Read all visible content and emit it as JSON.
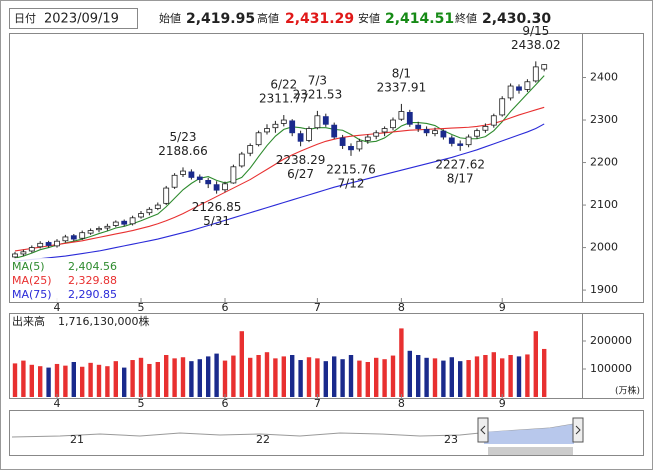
{
  "header": {
    "date_label": "日付",
    "date": "2023/09/19",
    "fields": [
      {
        "label": "始値",
        "value": "2,419.95"
      },
      {
        "label": "高値",
        "value": "2,431.29"
      },
      {
        "label": "安値",
        "value": "2,414.51"
      },
      {
        "label": "終値",
        "value": "2,430.30"
      }
    ]
  },
  "chart_data": [
    {
      "type": "candlestick",
      "up_color": "#ffffff",
      "down_color": "#1a2a8c",
      "categories": [
        null,
        null,
        null,
        null,
        null,
        "4",
        null,
        null,
        null,
        null,
        null,
        null,
        null,
        null,
        null,
        "5",
        null,
        null,
        null,
        null,
        null,
        null,
        null,
        null,
        null,
        "6",
        null,
        null,
        null,
        null,
        null,
        null,
        null,
        null,
        null,
        null,
        "7",
        null,
        null,
        null,
        null,
        null,
        null,
        null,
        null,
        null,
        "8",
        null,
        null,
        null,
        null,
        null,
        null,
        null,
        null,
        null,
        null,
        null,
        "9",
        null,
        null,
        null,
        null,
        null
      ],
      "candles": [
        [
          1978,
          1990,
          1972,
          1985
        ],
        [
          1985,
          1995,
          1980,
          1990
        ],
        [
          1992,
          2005,
          1988,
          2000
        ],
        [
          2002,
          2015,
          1998,
          2010
        ],
        [
          2012,
          2016,
          2000,
          2005
        ],
        [
          2004,
          2020,
          2000,
          2015
        ],
        [
          2016,
          2030,
          2012,
          2025
        ],
        [
          2028,
          2032,
          2015,
          2020
        ],
        [
          2022,
          2040,
          2018,
          2035
        ],
        [
          2034,
          2045,
          2030,
          2040
        ],
        [
          2042,
          2050,
          2036,
          2045
        ],
        [
          2046,
          2056,
          2040,
          2050
        ],
        [
          2052,
          2064,
          2048,
          2060
        ],
        [
          2062,
          2066,
          2050,
          2055
        ],
        [
          2056,
          2075,
          2052,
          2070
        ],
        [
          2072,
          2086,
          2068,
          2080
        ],
        [
          2082,
          2095,
          2076,
          2090
        ],
        [
          2092,
          2106,
          2088,
          2100
        ],
        [
          2104,
          2145,
          2100,
          2140
        ],
        [
          2142,
          2175,
          2138,
          2170
        ],
        [
          2172,
          2188.66,
          2166,
          2180
        ],
        [
          2178,
          2184,
          2160,
          2165
        ],
        [
          2166,
          2172,
          2152,
          2160
        ],
        [
          2158,
          2164,
          2140,
          2150
        ],
        [
          2148,
          2156,
          2126.85,
          2135
        ],
        [
          2136,
          2155,
          2130,
          2150
        ],
        [
          2152,
          2195,
          2150,
          2190
        ],
        [
          2192,
          2225,
          2188,
          2220
        ],
        [
          2222,
          2245,
          2215,
          2240
        ],
        [
          2242,
          2275,
          2238,
          2270
        ],
        [
          2272,
          2290,
          2266,
          2280
        ],
        [
          2282,
          2298,
          2270,
          2290
        ],
        [
          2292,
          2311.77,
          2285,
          2300
        ],
        [
          2298,
          2302,
          2262,
          2270
        ],
        [
          2268,
          2275,
          2238.29,
          2250
        ],
        [
          2252,
          2285,
          2248,
          2280
        ],
        [
          2282,
          2321.53,
          2278,
          2310
        ],
        [
          2308,
          2315,
          2284,
          2290
        ],
        [
          2288,
          2294,
          2255,
          2260
        ],
        [
          2258,
          2265,
          2232,
          2240
        ],
        [
          2238,
          2245,
          2215.76,
          2230
        ],
        [
          2232,
          2256,
          2226,
          2250
        ],
        [
          2252,
          2266,
          2244,
          2260
        ],
        [
          2262,
          2276,
          2255,
          2270
        ],
        [
          2272,
          2285,
          2262,
          2280
        ],
        [
          2282,
          2306,
          2276,
          2300
        ],
        [
          2302,
          2337.91,
          2298,
          2320
        ],
        [
          2318,
          2324,
          2284,
          2290
        ],
        [
          2288,
          2296,
          2272,
          2280
        ],
        [
          2278,
          2285,
          2262,
          2270
        ],
        [
          2268,
          2282,
          2262,
          2275
        ],
        [
          2274,
          2278,
          2254,
          2260
        ],
        [
          2258,
          2264,
          2238,
          2245
        ],
        [
          2244,
          2252,
          2227.62,
          2240
        ],
        [
          2242,
          2266,
          2236,
          2260
        ],
        [
          2262,
          2280,
          2256,
          2275
        ],
        [
          2276,
          2292,
          2270,
          2285
        ],
        [
          2288,
          2315,
          2282,
          2310
        ],
        [
          2312,
          2356,
          2308,
          2350
        ],
        [
          2352,
          2386,
          2346,
          2380
        ],
        [
          2378,
          2384,
          2362,
          2370
        ],
        [
          2372,
          2396,
          2366,
          2390
        ],
        [
          2392,
          2438.02,
          2388,
          2425
        ],
        [
          2419.95,
          2431.29,
          2414.51,
          2430.3
        ]
      ],
      "series": [
        {
          "name": "MA(5)",
          "color": "#2e8b2e",
          "legend_value": "2,404.56",
          "values": [
            1975,
            1980,
            1987,
            1995,
            2000,
            2006,
            2011,
            2015,
            2020,
            2026,
            2033,
            2039,
            2046,
            2050,
            2056,
            2063,
            2071,
            2079,
            2096,
            2116,
            2136,
            2151,
            2163,
            2167,
            2158,
            2152,
            2157,
            2165,
            2187,
            2214,
            2240,
            2262,
            2278,
            2284,
            2282,
            2278,
            2282,
            2282,
            2278,
            2276,
            2266,
            2254,
            2248,
            2250,
            2258,
            2272,
            2286,
            2294,
            2294,
            2292,
            2287,
            2275,
            2266,
            2258,
            2256,
            2256,
            2261,
            2275,
            2296,
            2320,
            2341,
            2362,
            2383,
            2404.56
          ]
        },
        {
          "name": "MA(25)",
          "color": "#e83030",
          "legend_value": "2,329.88",
          "values": [
            1992,
            1995,
            1998,
            2001,
            2004,
            2007,
            2010,
            2013,
            2016,
            2020,
            2024,
            2028,
            2032,
            2036,
            2040,
            2045,
            2050,
            2056,
            2063,
            2071,
            2080,
            2090,
            2100,
            2110,
            2120,
            2130,
            2140,
            2150,
            2160,
            2172,
            2184,
            2196,
            2208,
            2218,
            2227,
            2235,
            2243,
            2250,
            2255,
            2259,
            2262,
            2264,
            2266,
            2268,
            2270,
            2272,
            2274,
            2276,
            2277,
            2278,
            2279,
            2280,
            2281,
            2282,
            2283,
            2285,
            2288,
            2292,
            2298,
            2305,
            2312,
            2318,
            2324,
            2329.88
          ]
        },
        {
          "name": "MA(75)",
          "color": "#2a2ad8",
          "legend_value": "2,290.85",
          "values": [
            1968,
            1970,
            1972,
            1974,
            1976,
            1978,
            1980,
            1983,
            1986,
            1989,
            1992,
            1996,
            2000,
            2004,
            2008,
            2012,
            2016,
            2020,
            2025,
            2030,
            2035,
            2040,
            2046,
            2052,
            2058,
            2064,
            2070,
            2076,
            2082,
            2088,
            2094,
            2100,
            2106,
            2112,
            2118,
            2124,
            2130,
            2136,
            2142,
            2147,
            2152,
            2157,
            2162,
            2167,
            2172,
            2177,
            2182,
            2187,
            2192,
            2197,
            2202,
            2207,
            2212,
            2218,
            2224,
            2230,
            2237,
            2244,
            2251,
            2258,
            2265,
            2272,
            2280,
            2290.85
          ]
        }
      ],
      "annotations": [
        {
          "date": "5/23",
          "value": 2188.66
        },
        {
          "date": "5/31",
          "value": 2126.85
        },
        {
          "date": "6/22",
          "value": 2311.77
        },
        {
          "date": "6/27",
          "value": 2238.29
        },
        {
          "date": "7/3",
          "value": 2321.53
        },
        {
          "date": "7/12",
          "value": 2215.76
        },
        {
          "date": "8/1",
          "value": 2337.91
        },
        {
          "date": "8/17",
          "value": 2227.62
        },
        {
          "date": "9/15",
          "value": 2438.02
        }
      ],
      "ylim": [
        1872,
        2500
      ],
      "yticks": [
        1900,
        2000,
        2100,
        2200,
        2300,
        2400
      ],
      "grid": false
    },
    {
      "type": "bar",
      "title": "出来高",
      "subtitle": "1,716,130,000株",
      "unit": "(万株)",
      "up_color": "#e83030",
      "down_color": "#1a2a8c",
      "categories": [
        null,
        null,
        null,
        null,
        null,
        "4",
        null,
        null,
        null,
        null,
        null,
        null,
        null,
        null,
        null,
        "5",
        null,
        null,
        null,
        null,
        null,
        null,
        null,
        null,
        null,
        "6",
        null,
        null,
        null,
        null,
        null,
        null,
        null,
        null,
        null,
        null,
        "7",
        null,
        null,
        null,
        null,
        null,
        null,
        null,
        null,
        null,
        "8",
        null,
        null,
        null,
        null,
        null,
        null,
        null,
        null,
        null,
        null,
        null,
        "9",
        null,
        null,
        null,
        null,
        null
      ],
      "values": [
        120000,
        130000,
        115000,
        110000,
        105000,
        118000,
        112000,
        125000,
        108000,
        122000,
        115000,
        110000,
        128000,
        105000,
        132000,
        140000,
        118000,
        125000,
        150000,
        138000,
        142000,
        128000,
        135000,
        145000,
        155000,
        130000,
        148000,
        235000,
        140000,
        150000,
        160000,
        138000,
        145000,
        150000,
        132000,
        142000,
        138000,
        128000,
        145000,
        135000,
        150000,
        130000,
        125000,
        140000,
        135000,
        148000,
        245000,
        165000,
        150000,
        140000,
        138000,
        130000,
        142000,
        128000,
        132000,
        145000,
        150000,
        160000,
        138000,
        150000,
        145000,
        152000,
        235000,
        171613
      ],
      "ylim": [
        0,
        300000
      ],
      "yticks": [
        100000,
        200000
      ]
    }
  ],
  "navigator": {
    "labels": [
      "21",
      "22",
      "23"
    ]
  }
}
